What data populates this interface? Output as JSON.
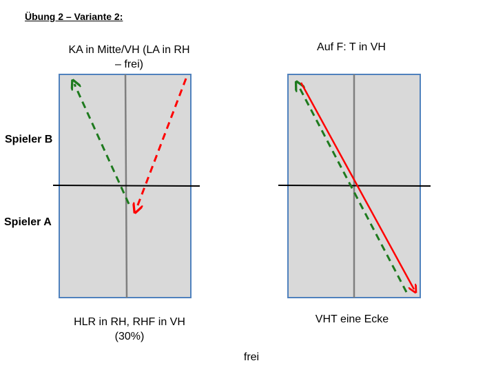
{
  "title": "Übung 2 – Variante 2:",
  "players": {
    "top": "Spieler B",
    "bottom": "Spieler A"
  },
  "left_diagram": {
    "caption_top": "KA in Mitte/VH (LA in RH – frei)",
    "caption_bottom": "HLR in RH, RHF in VH (30%)"
  },
  "right_diagram": {
    "caption_top": "Auf F: T in VH",
    "caption_bottom": "VHT eine Ecke"
  },
  "footer": "frei",
  "colors": {
    "table_fill": "#d9d9d9",
    "table_border": "#4f81bd",
    "center_line": "#7f7f7f",
    "net": "#000000",
    "green_arrow": "#1e7a1e",
    "red_arrow": "#ff0000"
  }
}
